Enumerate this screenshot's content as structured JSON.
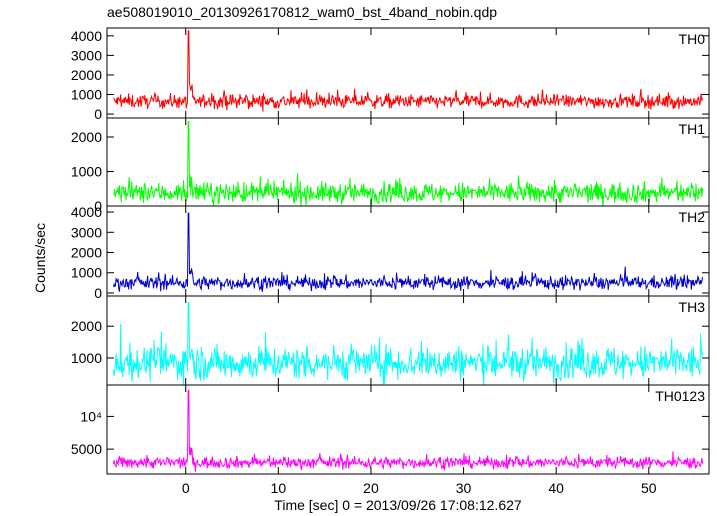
{
  "chart_data": {
    "type": "line",
    "title": "ae508019010_20130926170812_wam0_bst_4band_nobin.qdp",
    "xlabel": "Time [sec] 0 = 2013/09/26 17:08:12.627",
    "ylabel": "Counts/sec",
    "xlim": [
      -8.5,
      56.5
    ],
    "x_ticks": [
      0,
      10,
      20,
      30,
      40,
      50
    ],
    "x_range_data": [
      -7.8,
      55.8
    ],
    "burst_time": 0.3,
    "panels": [
      {
        "name": "TH0",
        "color": "#ff0000",
        "ylim": [
          -200,
          4400
        ],
        "y_ticks": [
          0,
          1000,
          2000,
          3000,
          4000
        ],
        "tick_labels": [
          "0",
          "1000",
          "2000",
          "3000",
          "4000"
        ],
        "baseline": 650,
        "noise": 180,
        "peak": 4250
      },
      {
        "name": "TH1",
        "color": "#00ff00",
        "ylim": [
          0,
          2550
        ],
        "y_ticks": [
          0,
          1000,
          2000
        ],
        "tick_labels": [
          "0",
          "1000",
          "2000"
        ],
        "baseline": 380,
        "noise": 150,
        "peak": 2450
      },
      {
        "name": "TH2",
        "color": "#0000cc",
        "ylim": [
          -150,
          4300
        ],
        "y_ticks": [
          0,
          1000,
          2000,
          3000,
          4000
        ],
        "tick_labels": [
          "0",
          "1000",
          "2000",
          "3000",
          "4000"
        ],
        "baseline": 500,
        "noise": 170,
        "peak": 3950
      },
      {
        "name": "TH3",
        "color": "#00ffff",
        "ylim": [
          150,
          2950
        ],
        "y_ticks": [
          1000,
          2000
        ],
        "tick_labels": [
          "1000",
          "2000"
        ],
        "baseline": 850,
        "noise": 270,
        "peak": 2750
      },
      {
        "name": "TH0123",
        "color": "#ff00ff",
        "ylim": [
          1200,
          14800
        ],
        "y_ticks": [
          5000,
          10000
        ],
        "tick_labels": [
          "5000",
          "10⁴"
        ],
        "baseline": 2950,
        "noise": 450,
        "peak": 14000
      }
    ]
  }
}
